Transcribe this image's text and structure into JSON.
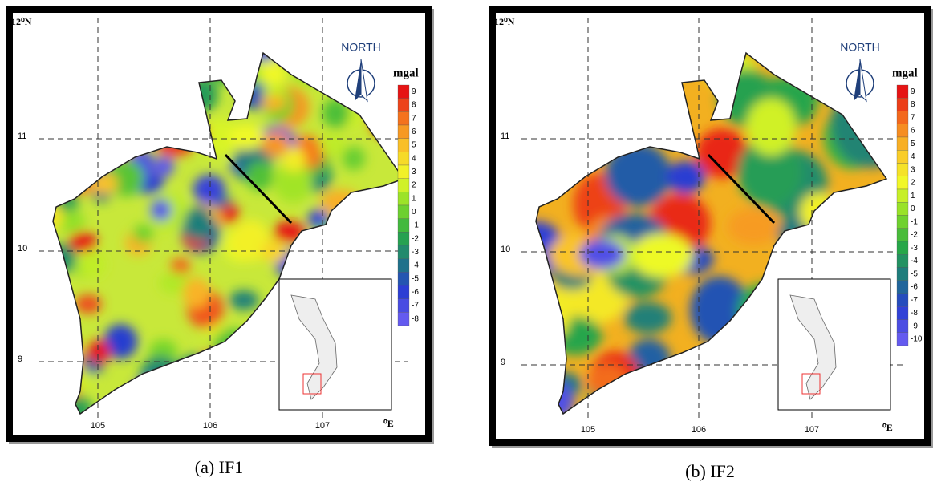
{
  "panels": [
    {
      "lat_top": "12⁰N",
      "lat_labels": [
        "11",
        "10",
        "9"
      ],
      "lon_labels": [
        "105",
        "106",
        "107"
      ],
      "lon_unit": "⁰E",
      "north": "NORTH",
      "unit": "mgal",
      "colorbar_labels": [
        "9",
        "8",
        "7",
        "6",
        "5",
        "4",
        "3",
        "2",
        "1",
        "0",
        "-1",
        "-2",
        "-3",
        "-4",
        "-5",
        "-6",
        "-7",
        "-8"
      ],
      "caption": "(a) IF1"
    },
    {
      "lat_top": "12⁰N",
      "lat_labels": [
        "11",
        "10",
        "9"
      ],
      "lon_labels": [
        "105",
        "106",
        "107"
      ],
      "lon_unit": "⁰E",
      "north": "NORTH",
      "unit": "mgal",
      "colorbar_labels": [
        "9",
        "8",
        "7",
        "6",
        "5",
        "4",
        "3",
        "2",
        "1",
        "0",
        "-1",
        "-2",
        "-3",
        "-4",
        "-5",
        "-6",
        "-7",
        "-8",
        "-9",
        "-10"
      ],
      "caption": "(b) IF2"
    }
  ]
}
